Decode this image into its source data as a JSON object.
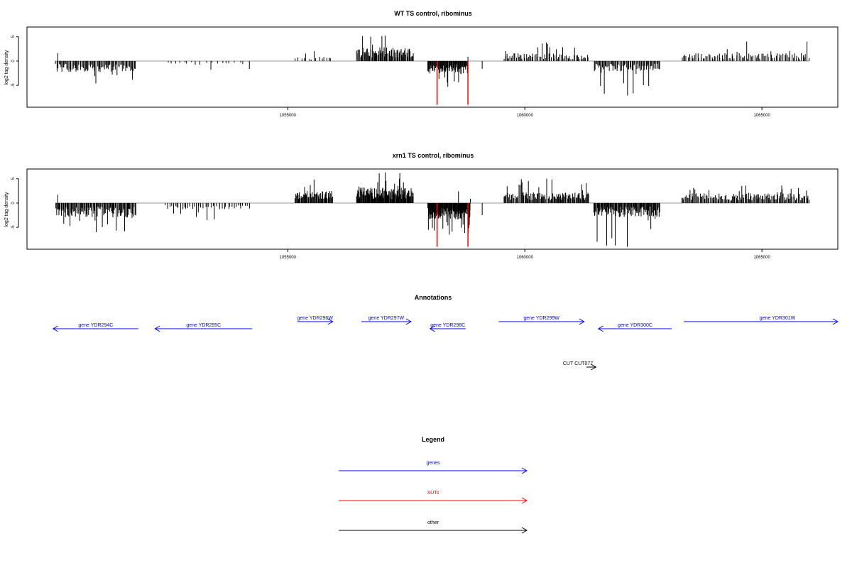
{
  "colors": {
    "gene": "#0000ff",
    "xut": "#ff0000",
    "other": "#000000",
    "signal": "#000000",
    "baseline": "#999999"
  },
  "panels": [
    {
      "title": "WT TS control, ribominus",
      "ylabel": "log2 tag density",
      "yticks": [
        {
          "v": 5,
          "t": "5"
        },
        {
          "v": 0,
          "t": "0"
        },
        {
          "v": -5,
          "t": "-5"
        }
      ],
      "xticks": [
        {
          "v": 1055000,
          "t": "1055000"
        },
        {
          "v": 1060000,
          "t": "1060000"
        },
        {
          "v": 1065000,
          "t": "1065000"
        }
      ]
    },
    {
      "title": "xrn1 TS control, ribominus",
      "ylabel": "log2 tag density",
      "yticks": [
        {
          "v": 5,
          "t": "5"
        },
        {
          "v": 0,
          "t": "0"
        },
        {
          "v": -5,
          "t": "-5"
        }
      ],
      "xticks": [
        {
          "v": 1055000,
          "t": "1055000"
        },
        {
          "v": 1060000,
          "t": "1060000"
        },
        {
          "v": 1065000,
          "t": "1065000"
        }
      ]
    }
  ],
  "annotations": {
    "title": "Annotations",
    "genes": [
      {
        "label": "gene YDR294C",
        "start": 1050050,
        "end": 1051850,
        "strand": "-"
      },
      {
        "label": "gene YDR295C",
        "start": 1052200,
        "end": 1054250,
        "strand": "-"
      },
      {
        "label": "gene YDR296W",
        "start": 1055200,
        "end": 1055950,
        "strand": "+"
      },
      {
        "label": "gene YDR297W",
        "start": 1056550,
        "end": 1057600,
        "strand": "+"
      },
      {
        "label": "gene YDR298C",
        "start": 1058000,
        "end": 1058750,
        "strand": "-"
      },
      {
        "label": "gene YDR299W",
        "start": 1059450,
        "end": 1061250,
        "strand": "+"
      },
      {
        "label": "gene YDR300C",
        "start": 1061550,
        "end": 1063100,
        "strand": "-"
      },
      {
        "label": "gene YDR301W",
        "start": 1063350,
        "end": 1066600,
        "strand": "+"
      }
    ],
    "other": [
      {
        "label": "CUT CUT077",
        "start": 1061300,
        "end": 1061500,
        "strand": "+"
      }
    ]
  },
  "legend": {
    "title": "Legend",
    "items": [
      {
        "label": "genes",
        "color": "#0000ff"
      },
      {
        "label": "XUTs",
        "color": "#ff0000"
      },
      {
        "label": "other",
        "color": "#000000"
      }
    ]
  },
  "chart_data": [
    {
      "type": "bar",
      "title": "WT TS control, ribominus",
      "xlabel": "",
      "ylabel": "log2 tag density",
      "xlim": [
        1049500,
        1066600
      ],
      "ylim": [
        -9.5,
        7
      ],
      "grid": false,
      "segments": [
        {
          "start": 1050100,
          "end": 1051800,
          "strand": "-",
          "mean": 2.3,
          "max": 4.6,
          "n": 80
        },
        {
          "start": 1052400,
          "end": 1054200,
          "strand": "-",
          "mean": 0.8,
          "max": 1.8,
          "n": 20
        },
        {
          "start": 1055150,
          "end": 1055950,
          "strand": "+",
          "mean": 0.9,
          "max": 2.0,
          "n": 15
        },
        {
          "start": 1056450,
          "end": 1057650,
          "strand": "+",
          "mean": 2.8,
          "max": 5.2,
          "n": 80
        },
        {
          "start": 1057950,
          "end": 1058800,
          "strand": "-",
          "mean": 2.7,
          "max": 5.3,
          "n": 80
        },
        {
          "start": 1059550,
          "end": 1061350,
          "strand": "+",
          "mean": 1.6,
          "max": 3.8,
          "n": 70
        },
        {
          "start": 1061450,
          "end": 1062850,
          "strand": "-",
          "mean": 2.1,
          "max": 7.1,
          "n": 70
        },
        {
          "start": 1063300,
          "end": 1066000,
          "strand": "+",
          "mean": 1.6,
          "max": 4.0,
          "n": 90
        }
      ],
      "spikes": [
        {
          "x": 1050150,
          "y": 1.6
        },
        {
          "x": 1058800,
          "y": 0.9
        },
        {
          "x": 1059600,
          "y": 1.0
        },
        {
          "x": 1059100,
          "y": -1.6
        }
      ],
      "xut_marks": [
        {
          "x": 1058150,
          "y": -9.0
        },
        {
          "x": 1058800,
          "y": -9.0
        }
      ]
    },
    {
      "type": "bar",
      "title": "xrn1 TS control, ribominus",
      "xlabel": "",
      "ylabel": "log2 tag density",
      "xlim": [
        1049500,
        1066600
      ],
      "ylim": [
        -9.5,
        7
      ],
      "grid": false,
      "segments": [
        {
          "start": 1050100,
          "end": 1051800,
          "strand": "-",
          "mean": 3.0,
          "max": 6.0,
          "n": 110
        },
        {
          "start": 1052400,
          "end": 1054200,
          "strand": "-",
          "mean": 1.3,
          "max": 3.5,
          "n": 45
        },
        {
          "start": 1055150,
          "end": 1055950,
          "strand": "+",
          "mean": 2.5,
          "max": 4.8,
          "n": 60
        },
        {
          "start": 1056450,
          "end": 1057650,
          "strand": "+",
          "mean": 3.2,
          "max": 6.3,
          "n": 120
        },
        {
          "start": 1057950,
          "end": 1058850,
          "strand": "-",
          "mean": 3.4,
          "max": 6.5,
          "n": 110
        },
        {
          "start": 1059550,
          "end": 1061350,
          "strand": "+",
          "mean": 2.2,
          "max": 5.0,
          "n": 110
        },
        {
          "start": 1061450,
          "end": 1062850,
          "strand": "-",
          "mean": 2.9,
          "max": 9.0,
          "n": 110
        },
        {
          "start": 1063300,
          "end": 1066000,
          "strand": "+",
          "mean": 2.0,
          "max": 3.6,
          "n": 140
        }
      ],
      "spikes": [
        {
          "x": 1050150,
          "y": 1.7
        },
        {
          "x": 1058600,
          "y": 2.4
        },
        {
          "x": 1058850,
          "y": 0.9
        },
        {
          "x": 1059100,
          "y": -2.5
        }
      ],
      "xut_marks": [
        {
          "x": 1058150,
          "y": -9.0
        },
        {
          "x": 1058800,
          "y": -9.0
        }
      ]
    }
  ]
}
